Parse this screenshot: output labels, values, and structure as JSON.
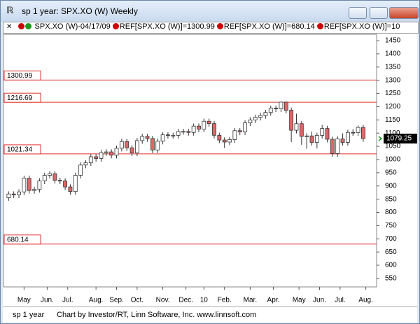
{
  "window": {
    "title": "sp 1 year: SPX.XO (W) Weekly"
  },
  "legend": {
    "items": [
      "SPX.XO (W)-04/17/09",
      "REF[SPX.XO (W)]=1300.99",
      "REF[SPX.XO (W)]=680.14",
      "REF[SPX.XO (W)]=10"
    ]
  },
  "chart_data": {
    "type": "candlestick",
    "open": [
      856,
      869.6,
      866.2,
      877.5,
      929.2,
      882.9,
      887.0,
      919.1,
      940.1,
      946.2,
      921.2,
      918.9,
      896.4,
      879.1,
      940.4,
      979.3,
      987.5,
      1010.5,
      1004.1,
      1026.1,
      1028.9,
      1016.4,
      1042.7,
      1068.3,
      1044.4,
      1025.2,
      1071.5,
      1087.7,
      1079.6,
      1036.2,
      1069.3,
      1093.5,
      1091.4,
      1091.5,
      1105.9,
      1106.4,
      1102.5,
      1126.5,
      1115.1,
      1145.0,
      1136.0,
      1091.8,
      1073.9,
      1066.2,
      1075.5,
      1109.2,
      1104.5,
      1138.7,
      1150.0,
      1159.9,
      1166.6,
      1178.1,
      1194.4,
      1192.1,
      1217.3,
      1186.7,
      1110.9,
      1135.7,
      1087.7,
      1089.4,
      1064.9,
      1091.6,
      1117.5,
      1076.8,
      1022.6,
      1078.0,
      1064.9,
      1102.7,
      1101.6,
      1121.6
    ],
    "high": [
      879.6,
      879.6,
      887.5,
      939.2,
      939.2,
      897.0,
      929.1,
      950.1,
      956.2,
      956.2,
      931.2,
      928.9,
      906.4,
      950.4,
      989.3,
      997.5,
      1020.5,
      1020.5,
      1036.1,
      1038.9,
      1038.9,
      1052.7,
      1078.3,
      1078.3,
      1054.4,
      1081.5,
      1097.7,
      1097.7,
      1089.6,
      1079.3,
      1103.5,
      1103.5,
      1101.5,
      1115.9,
      1116.4,
      1116.4,
      1136.5,
      1136.5,
      1155.0,
      1155.0,
      1146.0,
      1101.8,
      1083.9,
      1085.5,
      1119.2,
      1119.2,
      1148.7,
      1160.0,
      1169.9,
      1176.6,
      1188.1,
      1204.4,
      1204.4,
      1219.8,
      1220.0,
      1196.7,
      1173.6,
      1145.7,
      1099.4,
      1105.7,
      1101.6,
      1131.2,
      1127.5,
      1086.8,
      1088.0,
      1099.1,
      1112.7,
      1115.1,
      1129.2,
      1131.6
    ],
    "low": [
      844.0,
      854.2,
      854.2,
      865.5,
      870.9,
      870.9,
      875.0,
      907.1,
      928.1,
      909.2,
      906.9,
      884.4,
      867.1,
      867.1,
      928.4,
      967.3,
      975.5,
      992.1,
      992.1,
      1014.1,
      1004.4,
      1004.4,
      1030.7,
      1032.4,
      1013.2,
      1013.2,
      1059.5,
      1067.6,
      1024.2,
      1024.2,
      1057.3,
      1079.4,
      1079.4,
      1079.5,
      1093.9,
      1090.5,
      1090.5,
      1103.1,
      1103.1,
      1124.0,
      1079.8,
      1061.9,
      1044.2,
      1054.2,
      1063.5,
      1092.5,
      1092.5,
      1126.7,
      1138.0,
      1147.9,
      1154.6,
      1166.1,
      1180.1,
      1180.1,
      1174.7,
      1065.8,
      1098.9,
      1055.9,
      1040.9,
      1052.9,
      1042.2,
      1079.6,
      1064.8,
      1010.9,
      1010.6,
      1052.9,
      1052.9,
      1089.6,
      1089.6,
      1067.3
    ],
    "close": [
      869.6,
      866.2,
      877.5,
      929.2,
      882.9,
      887.0,
      919.1,
      940.1,
      946.2,
      921.2,
      918.9,
      896.4,
      879.1,
      940.4,
      979.3,
      987.5,
      1010.5,
      1004.1,
      1026.1,
      1028.9,
      1016.4,
      1042.7,
      1068.3,
      1044.4,
      1025.2,
      1071.5,
      1087.7,
      1079.6,
      1036.2,
      1069.3,
      1093.5,
      1091.4,
      1091.5,
      1105.9,
      1106.4,
      1102.5,
      1126.5,
      1115.1,
      1145.0,
      1136.0,
      1091.8,
      1073.9,
      1066.2,
      1075.5,
      1109.2,
      1104.5,
      1138.7,
      1150.0,
      1159.9,
      1166.6,
      1178.1,
      1194.4,
      1192.1,
      1217.3,
      1186.7,
      1110.9,
      1135.7,
      1087.7,
      1089.4,
      1064.9,
      1091.6,
      1117.5,
      1076.8,
      1022.6,
      1078.0,
      1064.9,
      1102.7,
      1101.6,
      1121.6,
      1079.25
    ],
    "up_color": "#ffffff",
    "down_color": "#e06666",
    "outline_color": "#333333",
    "ylim": [
      518,
      1474
    ],
    "yticks": [
      550,
      600,
      650,
      700,
      750,
      800,
      850,
      900,
      950,
      1000,
      1050,
      1100,
      1150,
      1200,
      1250,
      1300,
      1350,
      1400,
      1450
    ],
    "xlim": [
      -1,
      71.6
    ],
    "xticks": [
      {
        "value": 3,
        "label": "May"
      },
      {
        "value": 7.5,
        "label": "Jun."
      },
      {
        "value": 11.5,
        "label": "Jul."
      },
      {
        "value": 17,
        "label": "Aug."
      },
      {
        "value": 21,
        "label": "Sep."
      },
      {
        "value": 25,
        "label": "Oct."
      },
      {
        "value": 30,
        "label": "Nov."
      },
      {
        "value": 34.5,
        "label": "Dec."
      },
      {
        "value": 38,
        "label": "10"
      },
      {
        "value": 42,
        "label": "Feb."
      },
      {
        "value": 47,
        "label": "Mar."
      },
      {
        "value": 51.5,
        "label": "Apr."
      },
      {
        "value": 56.5,
        "label": "May"
      },
      {
        "value": 60.5,
        "label": "Jun."
      },
      {
        "value": 64.5,
        "label": "Jul."
      },
      {
        "value": 69.5,
        "label": "Aug."
      }
    ],
    "reference_lines": [
      {
        "value": 1300.99,
        "color": "#e03030"
      },
      {
        "value": 1216.69,
        "color": "#e03030"
      },
      {
        "value": 1021.34,
        "color": "#e03030"
      },
      {
        "value": 680.14,
        "color": "#e03030"
      }
    ]
  },
  "footer": {
    "name": "sp 1 year",
    "credit": "Chart by Investor/RT, Linn Software, Inc. www.linnsoft.com"
  }
}
